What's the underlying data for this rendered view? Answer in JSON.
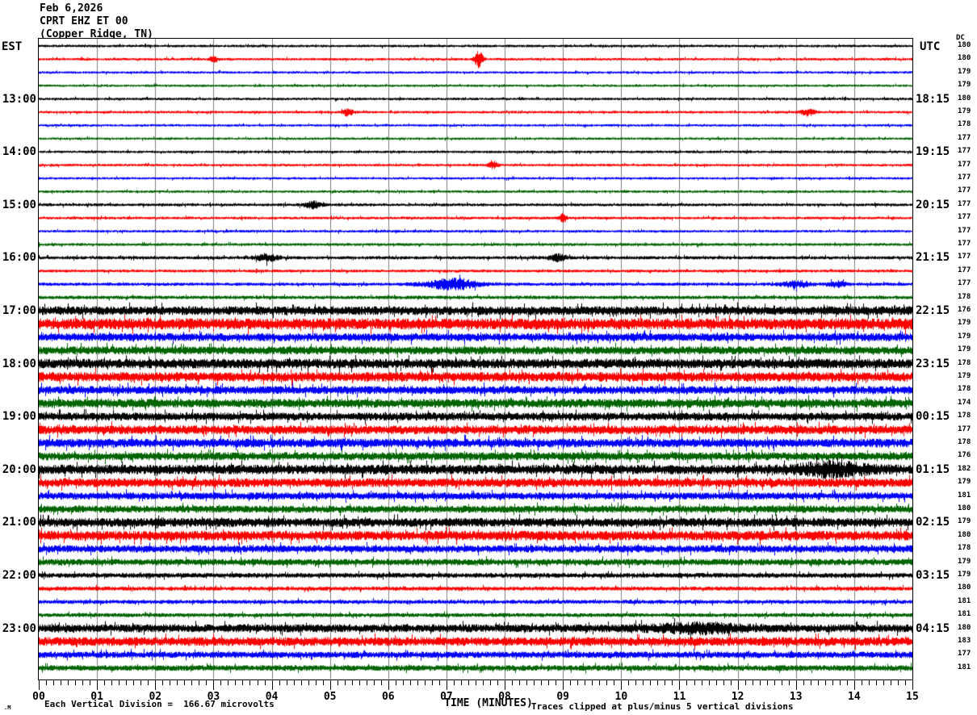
{
  "header": {
    "date": "Feb 6,2026",
    "station": "CPRT EHZ ET 00",
    "location": "(Copper Ridge, TN)"
  },
  "axes": {
    "left_tz": "EST",
    "right_tz": "UTC",
    "dc_header": "DC",
    "left_hour_labels": [
      "13:00",
      "14:00",
      "15:00",
      "16:00",
      "17:00",
      "18:00",
      "19:00",
      "20:00",
      "21:00",
      "22:00",
      "23:00"
    ],
    "right_hour_labels": [
      "18:15",
      "19:15",
      "20:15",
      "21:15",
      "22:15",
      "23:15",
      "00:15",
      "01:15",
      "02:15",
      "03:15",
      "04:15"
    ],
    "minute_labels": [
      "00",
      "01",
      "02",
      "03",
      "04",
      "05",
      "06",
      "07",
      "08",
      "09",
      "10",
      "11",
      "12",
      "13",
      "14",
      "15"
    ],
    "xaxis_title": "TIME (MINUTES)"
  },
  "footer": {
    "watermark": ".M",
    "scale_note": "Each Vertical Division =  166.67 microvolts",
    "clip_note": "Traces clipped at plus/minus 5 vertical divisions"
  },
  "chart_data": {
    "type": "line",
    "title": "Helicorder seismogram CPRT EHZ ET 00, Copper Ridge TN, Feb 6 2026",
    "x_range_minutes": [
      0,
      15
    ],
    "minutes_per_row": 15,
    "rows_per_hour": 4,
    "grid_color": "#808080",
    "trace_colors": {
      "black": "#000000",
      "red": "#ff0000",
      "blue": "#0000ff",
      "green": "#006400"
    },
    "row_color_cycle": [
      "black",
      "red",
      "blue",
      "green"
    ],
    "rows": [
      {
        "est_start": "12:00",
        "dc": 180,
        "amp": 1.6,
        "events": []
      },
      {
        "est_start": "12:15",
        "dc": 180,
        "amp": 1.6,
        "events": [
          {
            "m": 3.0,
            "g": 3,
            "w": 0.06
          },
          {
            "m": 7.55,
            "g": 6,
            "w": 0.07
          }
        ]
      },
      {
        "est_start": "12:30",
        "dc": 179,
        "amp": 1.5,
        "events": []
      },
      {
        "est_start": "12:45",
        "dc": 179,
        "amp": 1.5,
        "events": []
      },
      {
        "est_start": "13:00",
        "dc": 180,
        "amp": 1.6,
        "events": []
      },
      {
        "est_start": "13:15",
        "dc": 179,
        "amp": 1.6,
        "events": [
          {
            "m": 5.3,
            "g": 3,
            "w": 0.08
          },
          {
            "m": 13.2,
            "g": 2.5,
            "w": 0.12
          }
        ]
      },
      {
        "est_start": "13:30",
        "dc": 178,
        "amp": 1.5,
        "events": []
      },
      {
        "est_start": "13:45",
        "dc": 177,
        "amp": 1.5,
        "events": []
      },
      {
        "est_start": "14:00",
        "dc": 177,
        "amp": 1.6,
        "events": []
      },
      {
        "est_start": "14:15",
        "dc": 177,
        "amp": 1.6,
        "events": [
          {
            "m": 7.8,
            "g": 2.5,
            "w": 0.08
          }
        ]
      },
      {
        "est_start": "14:30",
        "dc": 177,
        "amp": 1.5,
        "events": []
      },
      {
        "est_start": "14:45",
        "dc": 177,
        "amp": 1.6,
        "events": []
      },
      {
        "est_start": "15:00",
        "dc": 177,
        "amp": 1.8,
        "events": [
          {
            "m": 4.7,
            "g": 2.2,
            "w": 0.15
          }
        ]
      },
      {
        "est_start": "15:15",
        "dc": 177,
        "amp": 1.7,
        "events": [
          {
            "m": 9.0,
            "g": 3,
            "w": 0.06
          }
        ]
      },
      {
        "est_start": "15:30",
        "dc": 177,
        "amp": 1.6,
        "events": []
      },
      {
        "est_start": "15:45",
        "dc": 177,
        "amp": 1.8,
        "events": []
      },
      {
        "est_start": "16:00",
        "dc": 177,
        "amp": 2.0,
        "events": [
          {
            "m": 3.9,
            "g": 2,
            "w": 0.2
          },
          {
            "m": 8.9,
            "g": 2,
            "w": 0.15
          }
        ]
      },
      {
        "est_start": "16:15",
        "dc": 177,
        "amp": 1.8,
        "events": []
      },
      {
        "est_start": "16:30",
        "dc": 177,
        "amp": 2.0,
        "events": [
          {
            "m": 7.1,
            "g": 3.2,
            "w": 0.45
          },
          {
            "m": 13.0,
            "g": 1.8,
            "w": 0.25
          },
          {
            "m": 13.7,
            "g": 1.5,
            "w": 0.15
          }
        ]
      },
      {
        "est_start": "16:45",
        "dc": 178,
        "amp": 2.2,
        "events": []
      },
      {
        "est_start": "17:00",
        "dc": 176,
        "amp": 5.5,
        "events": []
      },
      {
        "est_start": "17:15",
        "dc": 179,
        "amp": 7.0,
        "events": []
      },
      {
        "est_start": "17:30",
        "dc": 179,
        "amp": 5.0,
        "events": []
      },
      {
        "est_start": "17:45",
        "dc": 179,
        "amp": 5.0,
        "events": []
      },
      {
        "est_start": "18:00",
        "dc": 178,
        "amp": 6.0,
        "events": []
      },
      {
        "est_start": "18:15",
        "dc": 179,
        "amp": 6.0,
        "events": []
      },
      {
        "est_start": "18:30",
        "dc": 178,
        "amp": 5.0,
        "events": []
      },
      {
        "est_start": "18:45",
        "dc": 174,
        "amp": 5.5,
        "events": []
      },
      {
        "est_start": "19:00",
        "dc": 178,
        "amp": 5.0,
        "events": []
      },
      {
        "est_start": "19:15",
        "dc": 177,
        "amp": 5.5,
        "events": []
      },
      {
        "est_start": "19:30",
        "dc": 178,
        "amp": 5.5,
        "events": []
      },
      {
        "est_start": "19:45",
        "dc": 176,
        "amp": 5.0,
        "events": []
      },
      {
        "est_start": "20:00",
        "dc": 182,
        "amp": 6.0,
        "events": [
          {
            "m": 13.6,
            "g": 1.0,
            "w": 0.6
          }
        ]
      },
      {
        "est_start": "20:15",
        "dc": 179,
        "amp": 5.5,
        "events": []
      },
      {
        "est_start": "20:30",
        "dc": 181,
        "amp": 4.5,
        "events": []
      },
      {
        "est_start": "20:45",
        "dc": 180,
        "amp": 4.5,
        "events": []
      },
      {
        "est_start": "21:00",
        "dc": 179,
        "amp": 5.5,
        "events": []
      },
      {
        "est_start": "21:15",
        "dc": 180,
        "amp": 6.0,
        "events": []
      },
      {
        "est_start": "21:30",
        "dc": 178,
        "amp": 4.5,
        "events": []
      },
      {
        "est_start": "21:45",
        "dc": 179,
        "amp": 4.0,
        "events": []
      },
      {
        "est_start": "22:00",
        "dc": 179,
        "amp": 3.0,
        "events": []
      },
      {
        "est_start": "22:15",
        "dc": 180,
        "amp": 2.5,
        "events": []
      },
      {
        "est_start": "22:30",
        "dc": 181,
        "amp": 2.5,
        "events": []
      },
      {
        "est_start": "22:45",
        "dc": 181,
        "amp": 2.5,
        "events": []
      },
      {
        "est_start": "23:00",
        "dc": 180,
        "amp": 5.0,
        "events": [
          {
            "m": 11.3,
            "g": 0.8,
            "w": 0.7
          }
        ]
      },
      {
        "est_start": "23:15",
        "dc": 183,
        "amp": 5.5,
        "events": []
      },
      {
        "est_start": "23:30",
        "dc": 177,
        "amp": 4.0,
        "events": []
      },
      {
        "est_start": "23:45",
        "dc": 181,
        "amp": 3.5,
        "events": []
      }
    ]
  }
}
